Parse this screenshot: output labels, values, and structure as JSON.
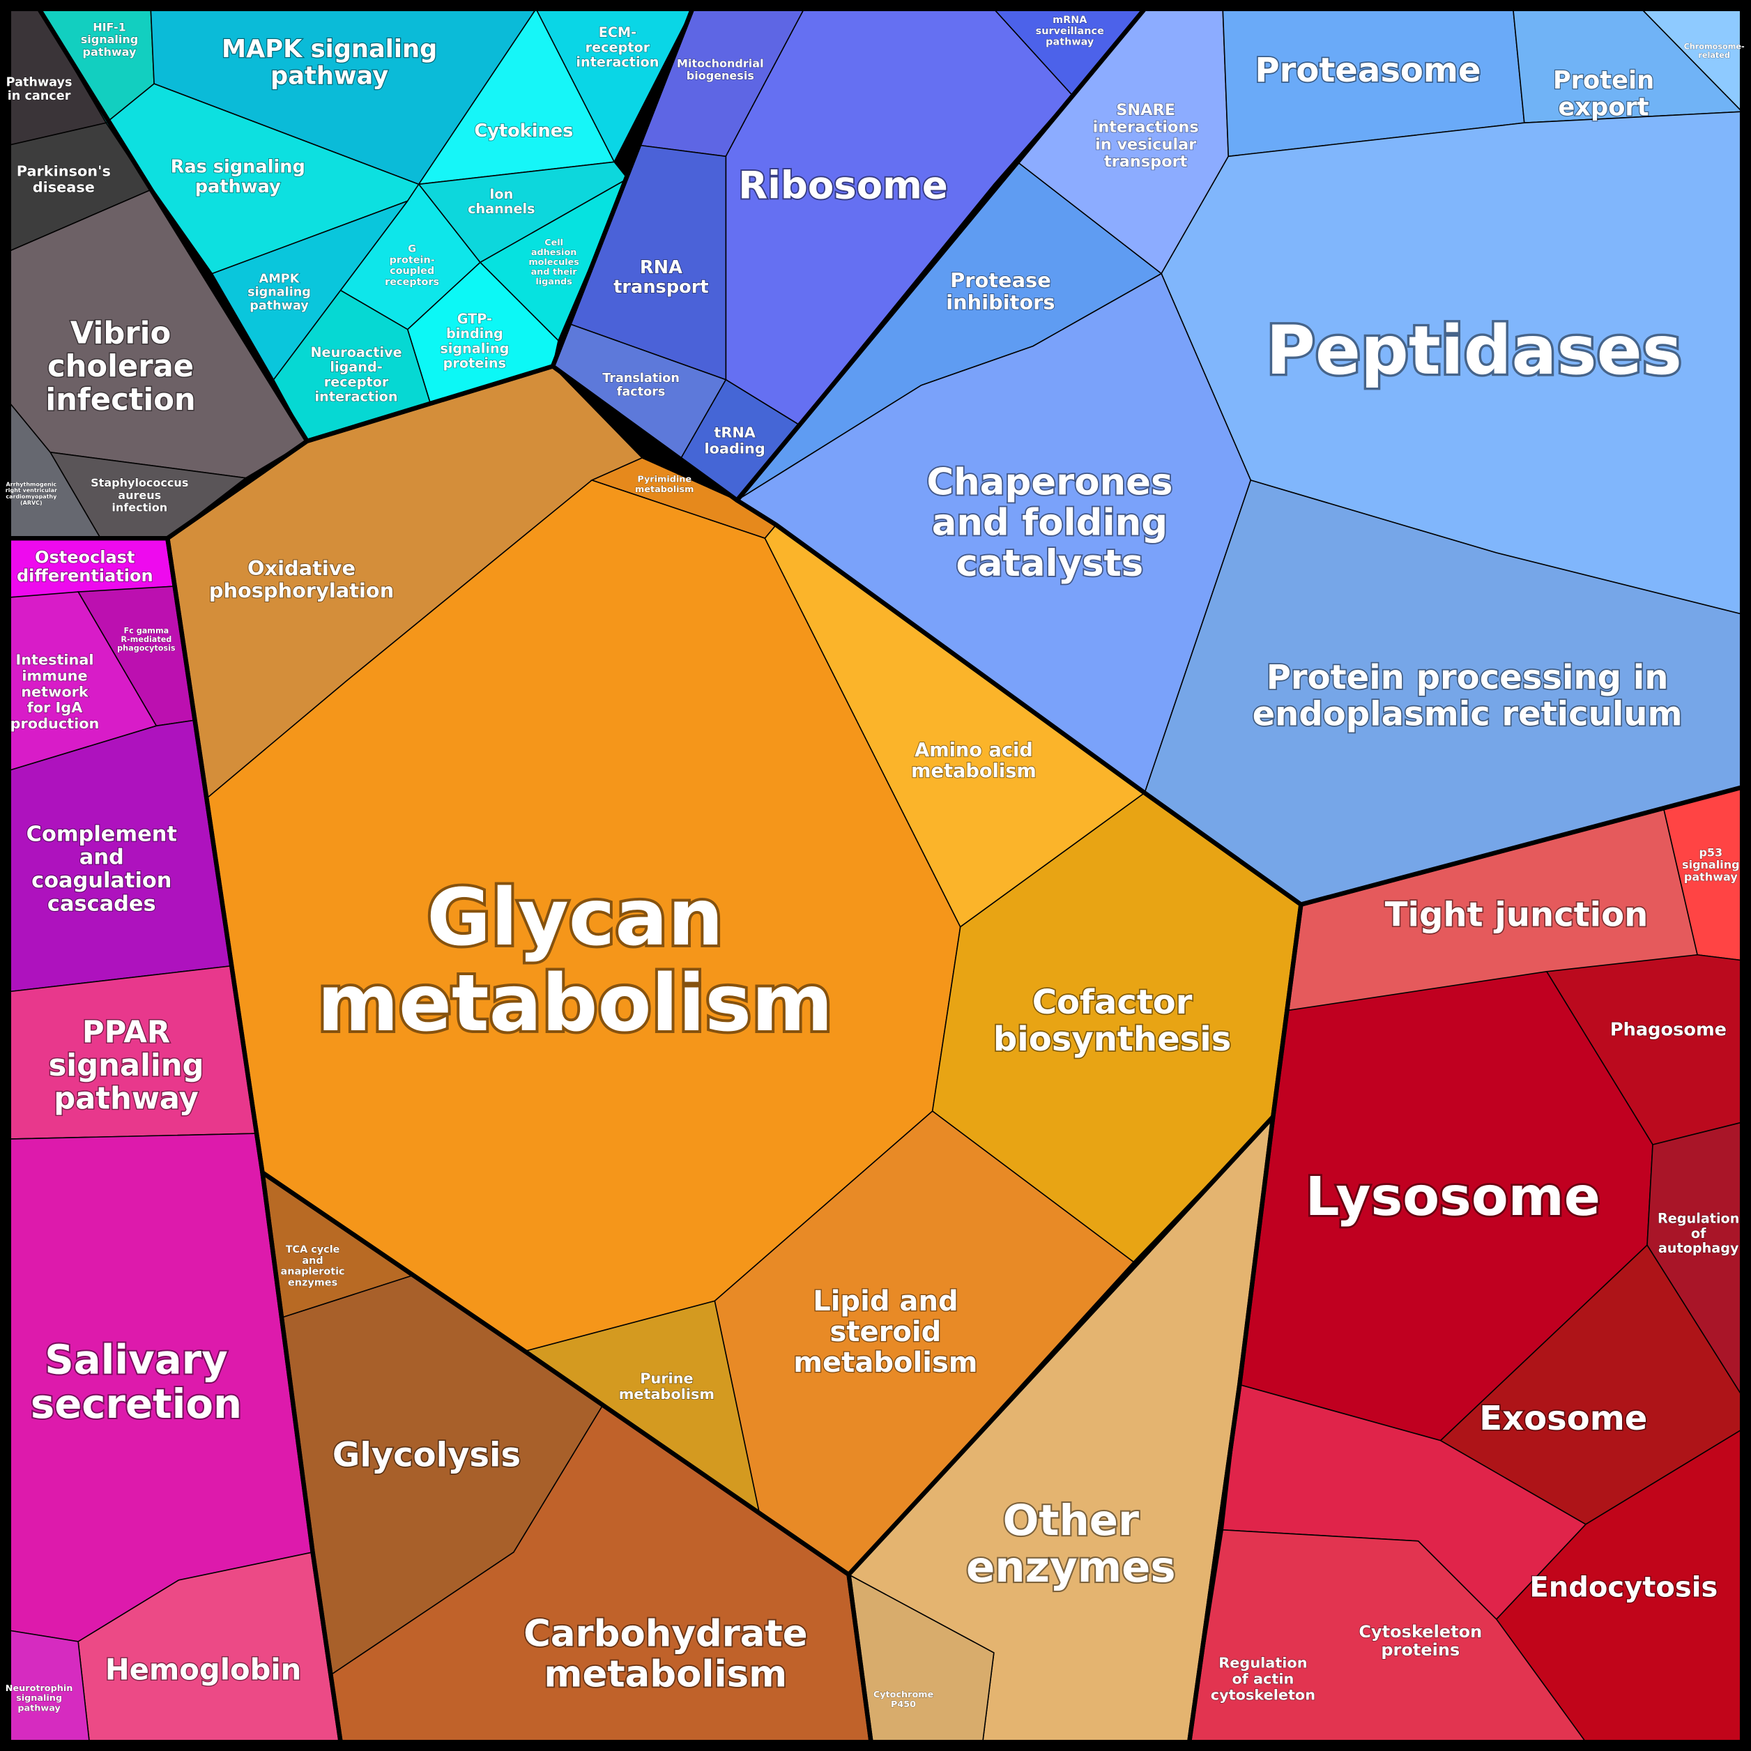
{
  "cells": [
    {
      "label": [
        "Pathways",
        "in cancer"
      ]
    },
    {
      "label": [
        "Parkinson's",
        "disease"
      ]
    },
    {
      "label": [
        "Vibrio",
        "cholerae",
        "infection"
      ]
    },
    {
      "label": [
        "Staphylococcus",
        "aureus",
        "infection"
      ]
    },
    {
      "label": [
        "Arrhythmogenic",
        "right ventricular",
        "cardiomyopathy",
        "(ARVC)"
      ]
    },
    {
      "label": [
        "HIF-1",
        "signaling",
        "pathway"
      ]
    },
    {
      "label": [
        "MAPK signaling",
        "pathway"
      ]
    },
    {
      "label": [
        "Ras signaling",
        "pathway"
      ]
    },
    {
      "label": [
        "AMPK",
        "signaling",
        "pathway"
      ]
    },
    {
      "label": [
        "ECM-",
        "receptor",
        "interaction"
      ]
    },
    {
      "label": [
        "Cytokines"
      ]
    },
    {
      "label": [
        "Ion",
        "channels"
      ]
    },
    {
      "label": [
        "G",
        "protein-",
        "coupled",
        "receptors"
      ]
    },
    {
      "label": [
        "Cell",
        "adhesion",
        "molecules",
        "and their",
        "ligands"
      ]
    },
    {
      "label": [
        "GTP-",
        "binding",
        "signaling",
        "proteins"
      ]
    },
    {
      "label": [
        "Neuroactive",
        "ligand-",
        "receptor",
        "interaction"
      ]
    },
    {
      "label": [
        "Mitochondrial",
        "biogenesis"
      ]
    },
    {
      "label": [
        "Ribosome"
      ]
    },
    {
      "label": [
        "mRNA",
        "surveillance",
        "pathway"
      ]
    },
    {
      "label": [
        "RNA",
        "transport"
      ]
    },
    {
      "label": [
        "Translation",
        "factors"
      ]
    },
    {
      "label": [
        "tRNA",
        "loading"
      ]
    },
    {
      "label": [
        "SNARE",
        "interactions",
        "in vesicular",
        "transport"
      ]
    },
    {
      "label": [
        "Proteasome"
      ]
    },
    {
      "label": [
        "Protein",
        "export"
      ]
    },
    {
      "label": [
        "Chromosome-",
        "related"
      ]
    },
    {
      "label": [
        "Peptidases"
      ]
    },
    {
      "label": [
        "Protease",
        "inhibitors"
      ]
    },
    {
      "label": [
        "Chaperones",
        "and folding",
        "catalysts"
      ]
    },
    {
      "label": [
        "Protein processing in",
        "endoplasmic reticulum"
      ]
    },
    {
      "label": [
        "Tight junction"
      ]
    },
    {
      "label": [
        "p53",
        "signaling",
        "pathway"
      ]
    },
    {
      "label": [
        "Phagosome"
      ]
    },
    {
      "label": [
        "Lysosome"
      ]
    },
    {
      "label": [
        "Regulation",
        "of",
        "autophagy"
      ]
    },
    {
      "label": [
        "Exosome"
      ]
    },
    {
      "label": [
        "Endocytosis"
      ]
    },
    {
      "label": [
        "Cytoskeleton",
        "proteins"
      ]
    },
    {
      "label": [
        "Regulation",
        "of actin",
        "cytoskeleton"
      ]
    },
    {
      "label": [
        "Osteoclast",
        "differentiation"
      ]
    },
    {
      "label": [
        "Fc gamma",
        "R-mediated",
        "phagocytosis"
      ]
    },
    {
      "label": [
        "Intestinal",
        "immune",
        "network",
        "for IgA",
        "production"
      ]
    },
    {
      "label": [
        "Complement",
        "and",
        "coagulation",
        "cascades"
      ]
    },
    {
      "label": [
        "PPAR",
        "signaling",
        "pathway"
      ]
    },
    {
      "label": [
        "Salivary",
        "secretion"
      ]
    },
    {
      "label": [
        "Hemoglobin"
      ]
    },
    {
      "label": [
        "Neurotrophin",
        "signaling",
        "pathway"
      ]
    },
    {
      "label": [
        "Oxidative",
        "phosphorylation"
      ]
    },
    {
      "label": [
        "Pyrimidine",
        "metabolism"
      ]
    },
    {
      "label": [
        "Glycan",
        "metabolism"
      ]
    },
    {
      "label": [
        "Amino acid",
        "metabolism"
      ]
    },
    {
      "label": [
        "Cofactor",
        "biosynthesis"
      ]
    },
    {
      "label": [
        "Lipid and",
        "steroid",
        "metabolism"
      ]
    },
    {
      "label": [
        "Purine",
        "metabolism"
      ]
    },
    {
      "label": [
        "TCA cycle",
        "and",
        "anaplerotic",
        "enzymes"
      ]
    },
    {
      "label": [
        "Glycolysis"
      ]
    },
    {
      "label": [
        "Carbohydrate",
        "metabolism"
      ]
    },
    {
      "label": [
        "Other",
        "enzymes"
      ]
    },
    {
      "label": [
        "Cytochrome",
        "P450"
      ]
    }
  ]
}
